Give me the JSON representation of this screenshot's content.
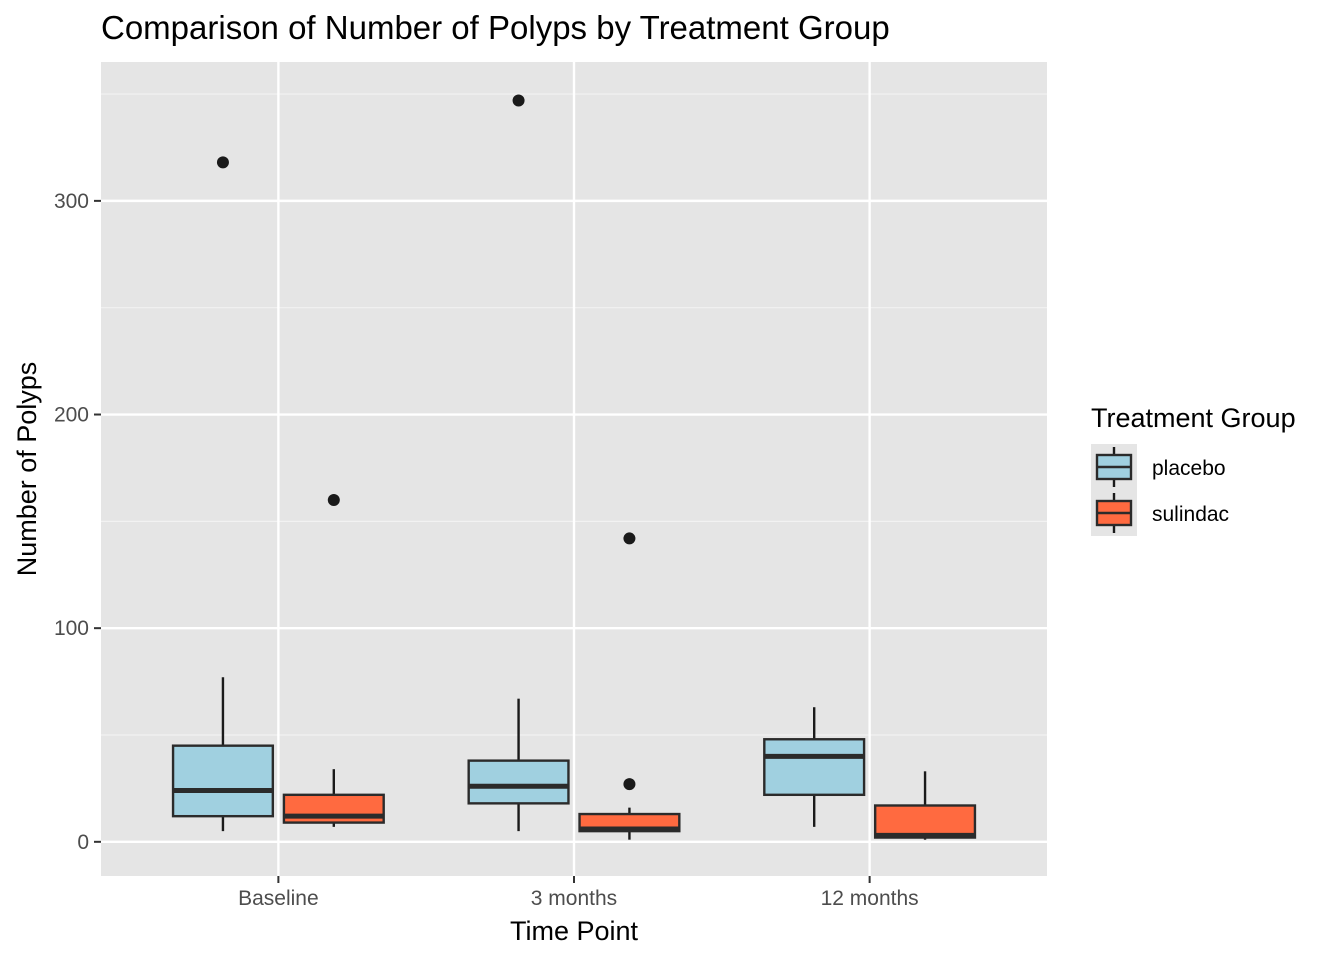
{
  "chart_data": {
    "type": "boxplot",
    "title": "Comparison of Number of Polyps by Treatment Group",
    "xlabel": "Time Point",
    "ylabel": "Number of Polyps",
    "categories": [
      "Baseline",
      "3 months",
      "12 months"
    ],
    "ylim": [
      -16,
      365
    ],
    "y_ticks": [
      0,
      100,
      200,
      300
    ],
    "grid": true,
    "legend": {
      "title": "Treatment Group",
      "position": "right"
    },
    "series": [
      {
        "name": "placebo",
        "color": "#a0d0e0",
        "boxes": [
          {
            "category": "Baseline",
            "whisker_low": 5,
            "q1": 12,
            "median": 24,
            "q3": 45,
            "whisker_high": 77,
            "outliers": [
              318
            ]
          },
          {
            "category": "3 months",
            "whisker_low": 5,
            "q1": 18,
            "median": 26,
            "q3": 38,
            "whisker_high": 67,
            "outliers": [
              347
            ]
          },
          {
            "category": "12 months",
            "whisker_low": 7,
            "q1": 22,
            "median": 40,
            "q3": 48,
            "whisker_high": 63,
            "outliers": []
          }
        ]
      },
      {
        "name": "sulindac",
        "color": "#ff6a40",
        "boxes": [
          {
            "category": "Baseline",
            "whisker_low": 7,
            "q1": 9,
            "median": 12,
            "q3": 22,
            "whisker_high": 34,
            "outliers": [
              160
            ]
          },
          {
            "category": "3 months",
            "whisker_low": 1,
            "q1": 5,
            "median": 6,
            "q3": 13,
            "whisker_high": 16,
            "outliers": [
              27,
              142
            ]
          },
          {
            "category": "12 months",
            "whisker_low": 1,
            "q1": 2,
            "median": 3,
            "q3": 17,
            "whisker_high": 33,
            "outliers": []
          }
        ]
      }
    ]
  }
}
